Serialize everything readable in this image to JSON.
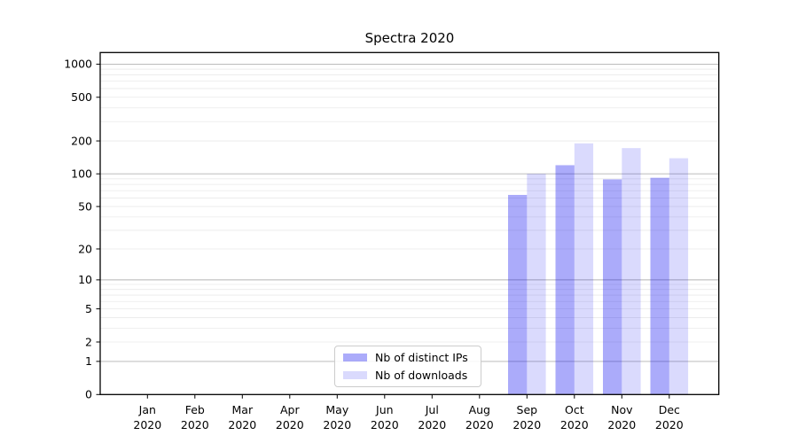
{
  "chart_data": {
    "type": "bar",
    "title": "Spectra 2020",
    "categories": [
      "Jan",
      "Feb",
      "Mar",
      "Apr",
      "May",
      "Jun",
      "Jul",
      "Aug",
      "Sep",
      "Oct",
      "Nov",
      "Dec"
    ],
    "category_year": "2020",
    "series": [
      {
        "name": "Nb of distinct IPs",
        "color": "rgba(0,0,240,0.33)",
        "values": [
          0,
          0,
          0,
          0,
          0,
          0,
          0,
          0,
          64,
          120,
          89,
          92
        ]
      },
      {
        "name": "Nb of downloads",
        "color": "rgba(0,0,240,0.145)",
        "values": [
          0,
          0,
          0,
          0,
          0,
          0,
          0,
          0,
          100,
          190,
          172,
          139
        ]
      }
    ],
    "yscale": "log1p",
    "ylim": [
      0,
      1282
    ],
    "yticks": [
      0,
      1,
      2,
      5,
      10,
      20,
      50,
      100,
      200,
      500,
      1000
    ],
    "major_gridlines": [
      1,
      10,
      100,
      1000
    ],
    "grid": true,
    "legend_position": "lower center",
    "colors": {
      "major_grid": "#b3b3b3",
      "minor_grid": "#eaeaea",
      "spine": "#000000",
      "text": "#000000",
      "background": "#ffffff"
    }
  }
}
